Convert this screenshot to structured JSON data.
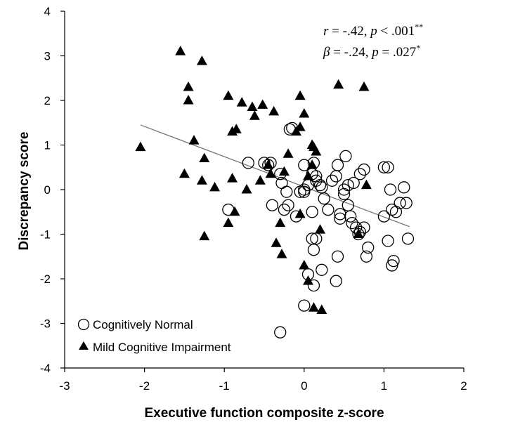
{
  "chart_data": {
    "type": "scatter",
    "xlabel": "Executive function composite z-score",
    "ylabel": "Discrepancy score",
    "xlim": [
      -3,
      2
    ],
    "ylim": [
      -4,
      4
    ],
    "x_ticks": [
      "-3",
      "-2",
      "-1",
      "0",
      "1",
      "2"
    ],
    "y_ticks": [
      "-4",
      "-3",
      "-2",
      "-1",
      "0",
      "1",
      "2",
      "3",
      "4"
    ],
    "grid": false,
    "legend_position": "bottom-left",
    "annotations": {
      "line1": {
        "a": "r",
        "b": " = -.42, ",
        "c": "p",
        "d": " < .001",
        "sup": "**"
      },
      "line2": {
        "a": "β",
        "b": " = -.24, ",
        "c": "p",
        "d": " = .027",
        "sup": "*"
      }
    },
    "trendline": {
      "x": [
        -2.05,
        1.32
      ],
      "y": [
        1.45,
        -0.83
      ]
    },
    "series": [
      {
        "name": "Cognitively Normal",
        "marker": "open-circle",
        "points": [
          [
            -0.95,
            -0.45
          ],
          [
            -0.7,
            0.6
          ],
          [
            -0.5,
            0.6
          ],
          [
            -0.45,
            0.55
          ],
          [
            -0.42,
            0.6
          ],
          [
            -0.4,
            -0.35
          ],
          [
            -0.3,
            0.35
          ],
          [
            -0.28,
            0.15
          ],
          [
            -0.25,
            -0.45
          ],
          [
            -0.22,
            -0.05
          ],
          [
            -0.2,
            -0.35
          ],
          [
            -0.18,
            1.35
          ],
          [
            -0.15,
            1.38
          ],
          [
            -0.1,
            -0.6
          ],
          [
            0.0,
            0.55
          ],
          [
            0.0,
            0.0
          ],
          [
            0.0,
            -0.05
          ],
          [
            -0.05,
            -0.05
          ],
          [
            0.05,
            0.1
          ],
          [
            0.1,
            -0.5
          ],
          [
            0.1,
            0.35
          ],
          [
            0.12,
            0.6
          ],
          [
            0.15,
            0.3
          ],
          [
            0.15,
            0.2
          ],
          [
            0.2,
            0.1
          ],
          [
            0.22,
            0.05
          ],
          [
            0.25,
            -0.2
          ],
          [
            0.3,
            -0.45
          ],
          [
            0.35,
            0.2
          ],
          [
            0.4,
            0.3
          ],
          [
            0.42,
            0.55
          ],
          [
            0.45,
            -0.55
          ],
          [
            0.45,
            -0.65
          ],
          [
            0.5,
            -0.1
          ],
          [
            0.5,
            0.0
          ],
          [
            0.52,
            0.75
          ],
          [
            0.55,
            -0.35
          ],
          [
            0.55,
            0.1
          ],
          [
            0.58,
            -0.6
          ],
          [
            0.6,
            -0.75
          ],
          [
            0.62,
            0.15
          ],
          [
            0.65,
            -0.85
          ],
          [
            0.7,
            0.35
          ],
          [
            0.7,
            -0.95
          ],
          [
            0.75,
            0.45
          ],
          [
            0.75,
            -0.85
          ],
          [
            0.8,
            -1.3
          ],
          [
            0.78,
            -1.5
          ],
          [
            0.68,
            -1.0
          ],
          [
            1.0,
            0.5
          ],
          [
            1.05,
            0.5
          ],
          [
            1.05,
            -1.15
          ],
          [
            1.0,
            -0.6
          ],
          [
            1.08,
            0.0
          ],
          [
            1.1,
            -1.7
          ],
          [
            1.12,
            -1.6
          ],
          [
            1.15,
            -0.5
          ],
          [
            1.1,
            -0.45
          ],
          [
            1.2,
            -0.3
          ],
          [
            1.25,
            0.05
          ],
          [
            1.3,
            -1.1
          ],
          [
            1.28,
            -0.3
          ],
          [
            0.1,
            -1.1
          ],
          [
            0.12,
            -1.35
          ],
          [
            0.15,
            -1.1
          ],
          [
            0.05,
            -1.9
          ],
          [
            0.12,
            -2.15
          ],
          [
            0.22,
            -1.8
          ],
          [
            0.42,
            -1.5
          ],
          [
            0.4,
            -2.05
          ],
          [
            0.0,
            -2.6
          ],
          [
            -0.3,
            -3.2
          ]
        ]
      },
      {
        "name": "Mild Cognitive Impairment",
        "marker": "filled-triangle",
        "points": [
          [
            -2.05,
            0.95
          ],
          [
            -1.55,
            3.1
          ],
          [
            -1.28,
            2.88
          ],
          [
            -1.45,
            2.3
          ],
          [
            -1.45,
            2.0
          ],
          [
            -1.38,
            1.1
          ],
          [
            -1.5,
            0.35
          ],
          [
            -1.25,
            0.7
          ],
          [
            -1.28,
            0.2
          ],
          [
            -1.12,
            0.05
          ],
          [
            -0.95,
            2.1
          ],
          [
            -0.78,
            1.95
          ],
          [
            -0.65,
            1.85
          ],
          [
            -0.52,
            1.9
          ],
          [
            -0.38,
            1.75
          ],
          [
            -0.62,
            1.65
          ],
          [
            -0.9,
            1.3
          ],
          [
            -0.85,
            1.35
          ],
          [
            -0.9,
            0.25
          ],
          [
            -0.72,
            0.0
          ],
          [
            -0.55,
            0.2
          ],
          [
            -0.45,
            0.55
          ],
          [
            -0.42,
            0.35
          ],
          [
            -0.2,
            0.8
          ],
          [
            -0.3,
            -0.75
          ],
          [
            -0.25,
            0.4
          ],
          [
            -0.95,
            -0.75
          ],
          [
            -0.87,
            -0.5
          ],
          [
            -1.25,
            -1.05
          ],
          [
            -0.35,
            -1.2
          ],
          [
            -0.28,
            -1.45
          ],
          [
            -0.05,
            2.1
          ],
          [
            0.0,
            1.7
          ],
          [
            -0.05,
            1.4
          ],
          [
            -0.1,
            1.3
          ],
          [
            0.1,
            1.0
          ],
          [
            0.12,
            0.95
          ],
          [
            0.15,
            0.85
          ],
          [
            0.1,
            0.55
          ],
          [
            0.05,
            0.3
          ],
          [
            0.2,
            -0.9
          ],
          [
            -0.05,
            -0.55
          ],
          [
            0.0,
            -1.7
          ],
          [
            0.05,
            -2.05
          ],
          [
            0.12,
            -2.65
          ],
          [
            0.22,
            -2.7
          ],
          [
            0.43,
            2.35
          ],
          [
            0.75,
            2.3
          ],
          [
            0.78,
            0.1
          ],
          [
            0.68,
            -1.0
          ]
        ]
      }
    ]
  }
}
